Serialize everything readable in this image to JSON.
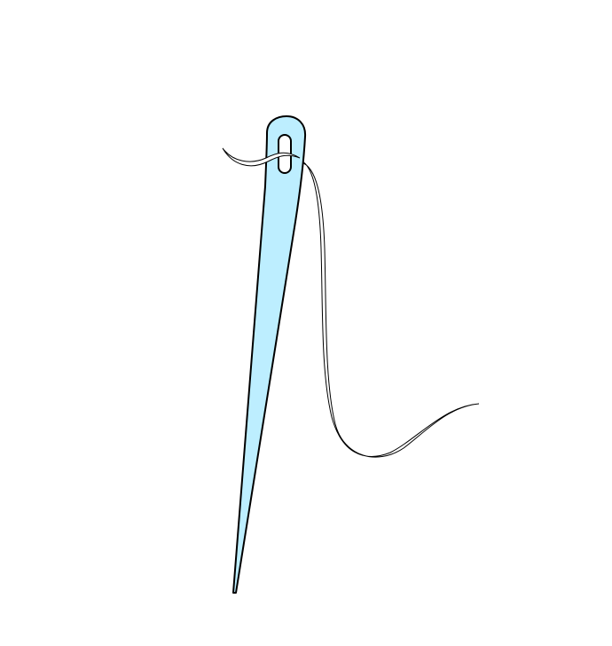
{
  "illustration": {
    "subject": "needle-and-thread",
    "colors": {
      "background": "#ffffff",
      "needle_fill": "#bdeeff",
      "outline": "#000000",
      "thread_fill": "#ffffff"
    }
  }
}
